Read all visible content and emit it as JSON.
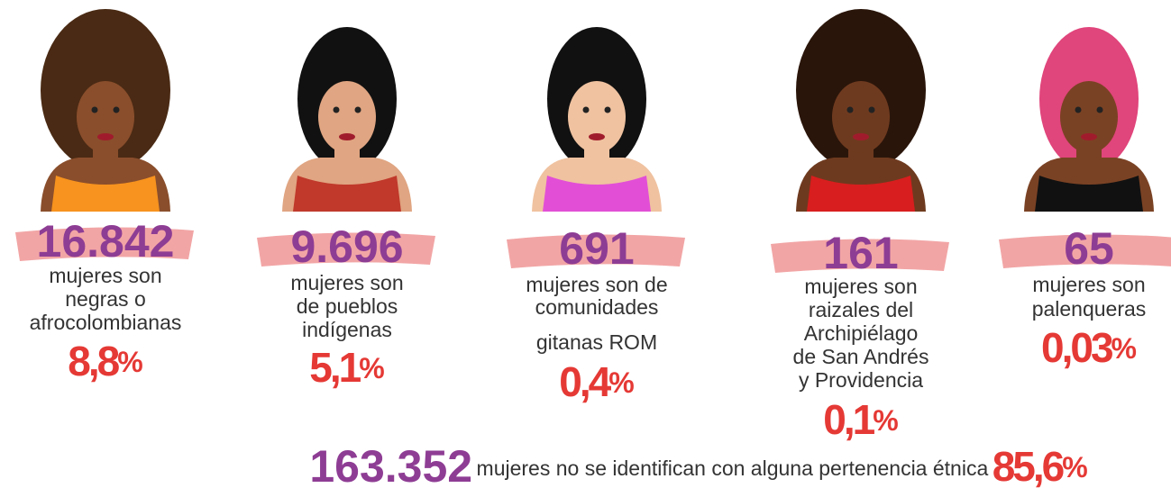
{
  "groups": [
    {
      "count": "16.842",
      "lines": [
        "mujeres son",
        "negras o",
        "afrocolombianas"
      ],
      "percent": "8,8",
      "percent_sign": "%"
    },
    {
      "count": "9.696",
      "lines": [
        "mujeres son",
        "de pueblos",
        "indígenas"
      ],
      "percent": "5,1",
      "percent_sign": "%"
    },
    {
      "count": "691",
      "lines": [
        "mujeres son de",
        "comunidades",
        "gitanas ROM"
      ],
      "percent": "0,4",
      "percent_sign": "%"
    },
    {
      "count": "161",
      "lines": [
        "mujeres son",
        "raizales del",
        "Archipiélago",
        "de San Andrés",
        "y Providencia"
      ],
      "percent": "0,1",
      "percent_sign": "%"
    },
    {
      "count": "65",
      "lines": [
        "mujeres son",
        "palenqueras"
      ],
      "percent": "0,03",
      "percent_sign": "%"
    }
  ],
  "summary": {
    "count": "163.352",
    "text": "mujeres no se identifican con alguna pertenencia étnica",
    "percent": "85,6",
    "percent_sign": "%"
  }
}
